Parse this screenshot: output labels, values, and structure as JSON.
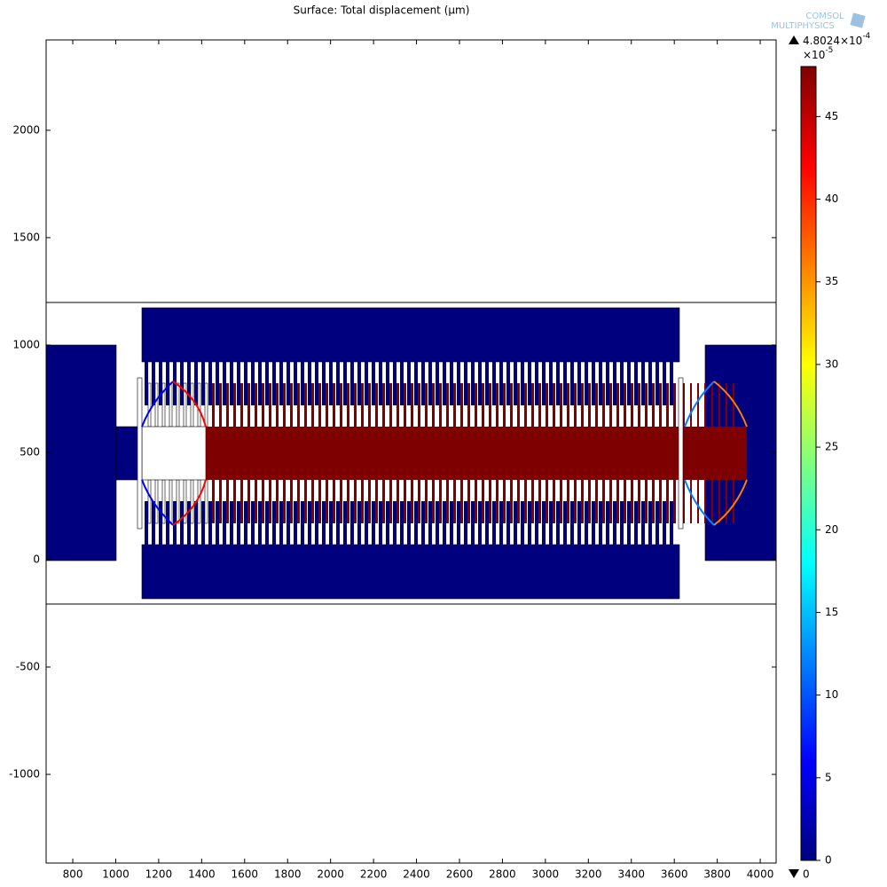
{
  "chart_data": {
    "type": "surface",
    "title": "Surface: Total displacement (µm)",
    "logo": [
      "COMSOL",
      "MULTIPHYSICS"
    ],
    "xlim": [
      676,
      4074
    ],
    "ylim": [
      -1413,
      2421
    ],
    "xticks": [
      800,
      1000,
      1200,
      1400,
      1600,
      1800,
      2000,
      2200,
      2400,
      2600,
      2800,
      3000,
      3200,
      3400,
      3600,
      3800,
      4000
    ],
    "yticks": [
      -1000,
      -500,
      0,
      500,
      1000,
      1500,
      2000
    ],
    "colormap": [
      "#00007f",
      "#0000ff",
      "#007fff",
      "#00ffff",
      "#7fff7f",
      "#ffff00",
      "#ff7f00",
      "#ff0000",
      "#7f0000"
    ],
    "clim": [
      0,
      48.024
    ],
    "cticks": [
      0,
      5,
      10,
      15,
      20,
      25,
      30,
      35,
      40,
      45
    ],
    "colorbar_max": {
      "text": "4.8024×10",
      "exponent": "-4"
    },
    "colorbar_multiplier": {
      "text": "×10",
      "exponent": "-5"
    },
    "colorbar_min": "0"
  }
}
